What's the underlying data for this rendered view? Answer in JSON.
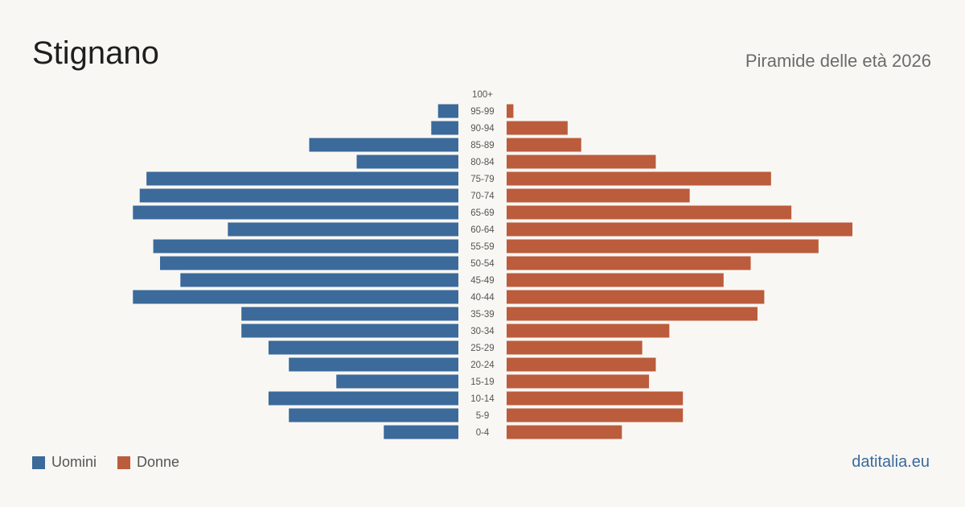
{
  "header": {
    "title": "Stignano",
    "subtitle": "Piramide delle età 2026"
  },
  "legend": {
    "men": "Uomini",
    "women": "Donne"
  },
  "footer": {
    "source": "datitalia.eu"
  },
  "colors": {
    "men": "#3b6a9b",
    "women": "#bb5c3c",
    "background": "#f9f7f3"
  },
  "chart_data": {
    "type": "bar",
    "orientation": "horizontal-pyramid",
    "categories": [
      "100+",
      "95-99",
      "90-94",
      "85-89",
      "80-84",
      "75-79",
      "70-74",
      "65-69",
      "60-64",
      "55-59",
      "50-54",
      "45-49",
      "40-44",
      "35-39",
      "30-34",
      "25-29",
      "20-24",
      "15-19",
      "10-14",
      "5-9",
      "0-4"
    ],
    "series": [
      {
        "name": "Uomini",
        "values": [
          0,
          3,
          4,
          22,
          15,
          46,
          47,
          48,
          34,
          45,
          44,
          41,
          48,
          32,
          32,
          28,
          25,
          18,
          28,
          25,
          11
        ]
      },
      {
        "name": "Donne",
        "values": [
          0,
          1,
          9,
          11,
          22,
          39,
          27,
          42,
          51,
          46,
          36,
          32,
          38,
          37,
          24,
          20,
          22,
          21,
          26,
          26,
          17
        ]
      }
    ],
    "max": 51,
    "legend_position": "bottom-left"
  }
}
